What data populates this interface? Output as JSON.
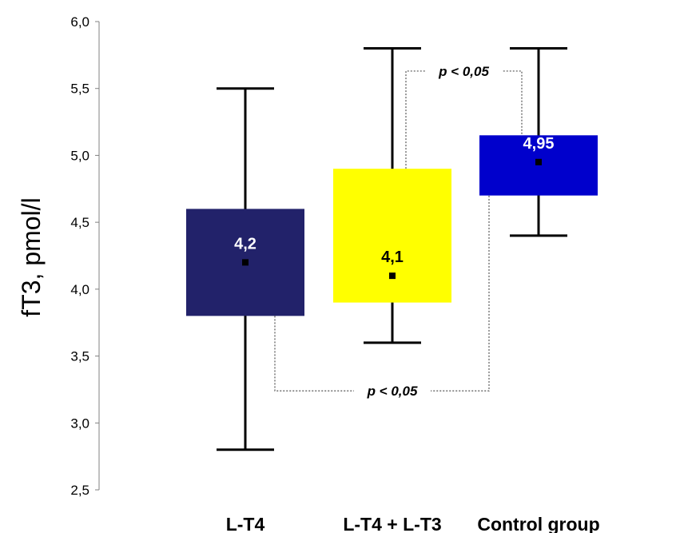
{
  "chart_data": {
    "type": "box",
    "title": "",
    "xlabel": "",
    "ylabel": "fT3, pmol/l",
    "ylim": [
      2.5,
      6.0
    ],
    "yticks": [
      2.5,
      3.0,
      3.5,
      4.0,
      4.5,
      5.0,
      5.5,
      6.0
    ],
    "ytick_labels": [
      "2,5",
      "3,0",
      "3,5",
      "4,0",
      "4,5",
      "5,0",
      "5,5",
      "6,0"
    ],
    "grid": false,
    "categories": [
      "L-T4",
      "L-T4 + L-T3",
      "Control group"
    ],
    "boxes": [
      {
        "category": "L-T4",
        "whisker_low": 2.8,
        "box_low": 3.8,
        "box_high": 4.6,
        "whisker_high": 5.5,
        "marker": 4.2,
        "label": "4,2",
        "color": "#22226a",
        "label_color": "#ffffff"
      },
      {
        "category": "L-T4 + L-T3",
        "whisker_low": 3.6,
        "box_low": 3.9,
        "box_high": 4.9,
        "whisker_high": 5.8,
        "marker": 4.1,
        "label": "4,1",
        "color": "#ffff00",
        "label_color": "#000000"
      },
      {
        "category": "Control group",
        "whisker_low": 4.4,
        "box_low": 4.7,
        "box_high": 5.15,
        "whisker_high": 5.8,
        "marker": 4.95,
        "label": "4,95",
        "color": "#0000cc",
        "label_color": "#ffffff"
      }
    ],
    "annotations": [
      {
        "text": "p < 0,05",
        "from": "L-T4 + L-T3",
        "to": "Control group",
        "level": 5.63,
        "from_value": 4.9,
        "to_value": 5.15
      },
      {
        "text": "p < 0,05",
        "from": "L-T4",
        "to": "Control group",
        "level": 3.24,
        "from_value": 3.8,
        "to_value": 4.7
      }
    ]
  }
}
